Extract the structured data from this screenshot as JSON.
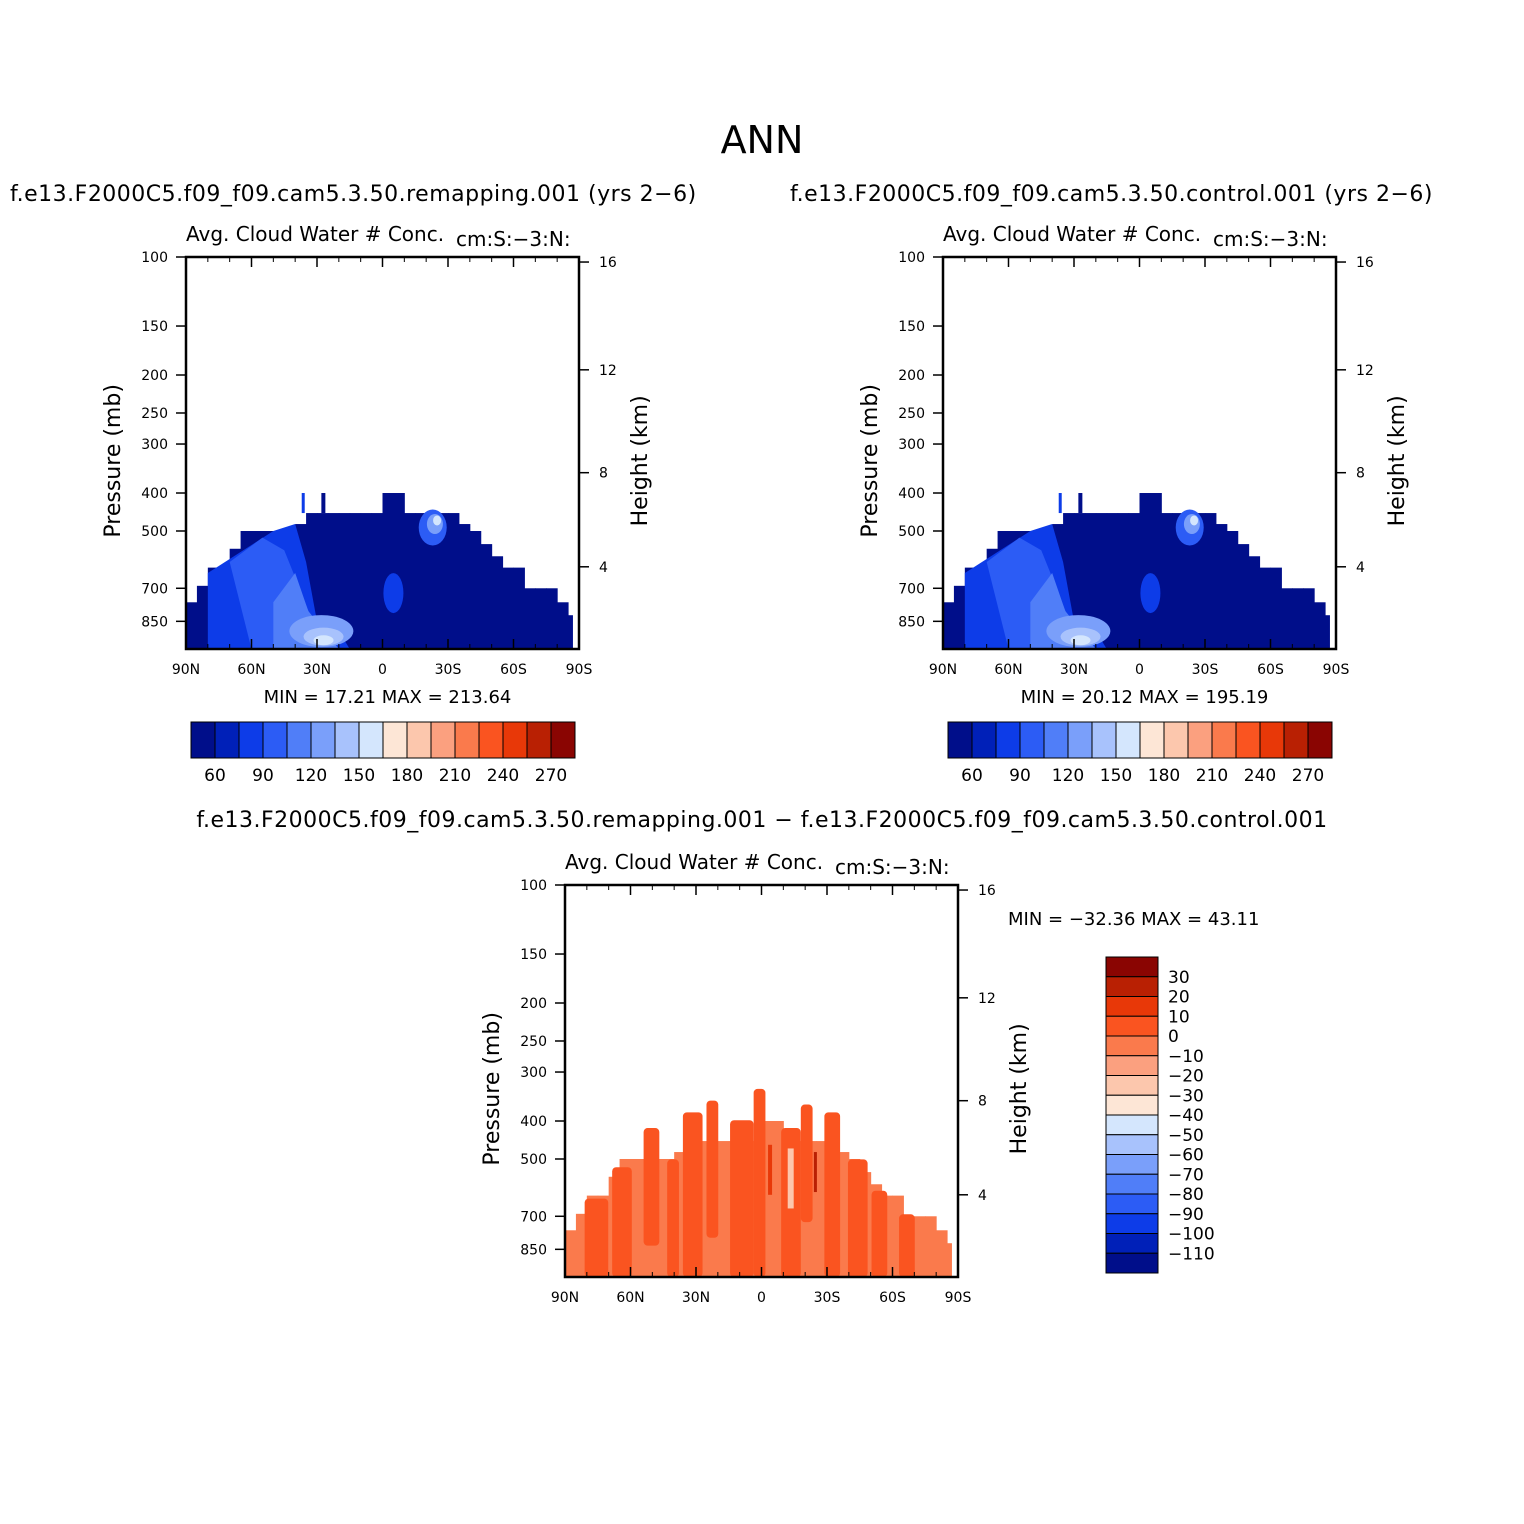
{
  "main_title": "ANN",
  "colors": {
    "blues": [
      "#000e8a",
      "#0020b8",
      "#0d3ce8",
      "#2c5cf5",
      "#507ef8",
      "#7a9ffa",
      "#a8c2fc",
      "#d4e6fd"
    ],
    "reds": [
      "#fde6d6",
      "#fcc7ad",
      "#fba07f",
      "#fa7a4c",
      "#fa5420",
      "#e83808",
      "#b92003",
      "#8a0502"
    ]
  },
  "panels": {
    "top_left": {
      "case_title": "f.e13.F2000C5.f09_f09.cam5.3.50.remapping.001  (yrs 2−6)",
      "subtitle": "Avg. Cloud Water # Conc.",
      "units": "cm:S:−3:N:",
      "min_max": "MIN =   17.21   MAX =  213.64"
    },
    "top_right": {
      "case_title": "f.e13.F2000C5.f09_f09.cam5.3.50.control.001  (yrs 2−6)",
      "subtitle": "Avg. Cloud Water # Conc.",
      "units": "cm:S:−3:N:",
      "min_max": "MIN =   20.12   MAX =  195.19"
    },
    "bottom": {
      "case_title": "f.e13.F2000C5.f09_f09.cam5.3.50.remapping.001  −  f.e13.F2000C5.f09_f09.cam5.3.50.control.001",
      "subtitle": "Avg. Cloud Water # Conc.",
      "units": "cm:S:−3:N:",
      "min_max": "MIN = −32.36   MAX =   43.11"
    }
  },
  "chart_data": [
    {
      "type": "heatmap",
      "title": "f.e13.F2000C5.f09_f09.cam5.3.50.remapping.001  (yrs 2−6)",
      "subtitle": "Avg. Cloud Water # Conc.",
      "x_label": "",
      "y_label": "Pressure (mb)",
      "y2_label": "Height (km)",
      "x_ticks": [
        "90N",
        "60N",
        "30N",
        "0",
        "30S",
        "60S",
        "90S"
      ],
      "y_ticks": [
        100,
        150,
        200,
        250,
        300,
        400,
        500,
        700,
        850
      ],
      "y2_ticks": [
        16,
        12,
        8,
        4
      ],
      "colorbar_levels": [
        60,
        90,
        120,
        150,
        180,
        210,
        240,
        270
      ],
      "min": 17.21,
      "max": 213.64
    },
    {
      "type": "heatmap",
      "title": "f.e13.F2000C5.f09_f09.cam5.3.50.control.001  (yrs 2−6)",
      "subtitle": "Avg. Cloud Water # Conc.",
      "x_label": "",
      "y_label": "Pressure (mb)",
      "y2_label": "Height (km)",
      "x_ticks": [
        "90N",
        "60N",
        "30N",
        "0",
        "30S",
        "60S",
        "90S"
      ],
      "y_ticks": [
        100,
        150,
        200,
        250,
        300,
        400,
        500,
        700,
        850
      ],
      "y2_ticks": [
        16,
        12,
        8,
        4
      ],
      "colorbar_levels": [
        60,
        90,
        120,
        150,
        180,
        210,
        240,
        270
      ],
      "min": 20.12,
      "max": 195.19
    },
    {
      "type": "heatmap",
      "title": "f.e13.F2000C5.f09_f09.cam5.3.50.remapping.001  −  f.e13.F2000C5.f09_f09.cam5.3.50.control.001",
      "subtitle": "Avg. Cloud Water # Conc.",
      "x_label": "",
      "y_label": "Pressure (mb)",
      "y2_label": "Height (km)",
      "x_ticks": [
        "90N",
        "60N",
        "30N",
        "0",
        "30S",
        "60S",
        "90S"
      ],
      "y_ticks": [
        100,
        150,
        200,
        250,
        300,
        400,
        500,
        700,
        850
      ],
      "y2_ticks": [
        16,
        12,
        8,
        4
      ],
      "colorbar_levels": [
        30,
        20,
        10,
        0,
        -10,
        -20,
        -30,
        -40,
        -50,
        -60,
        -70,
        -80,
        -90,
        -100,
        -110
      ],
      "min": -32.36,
      "max": 43.11
    }
  ]
}
